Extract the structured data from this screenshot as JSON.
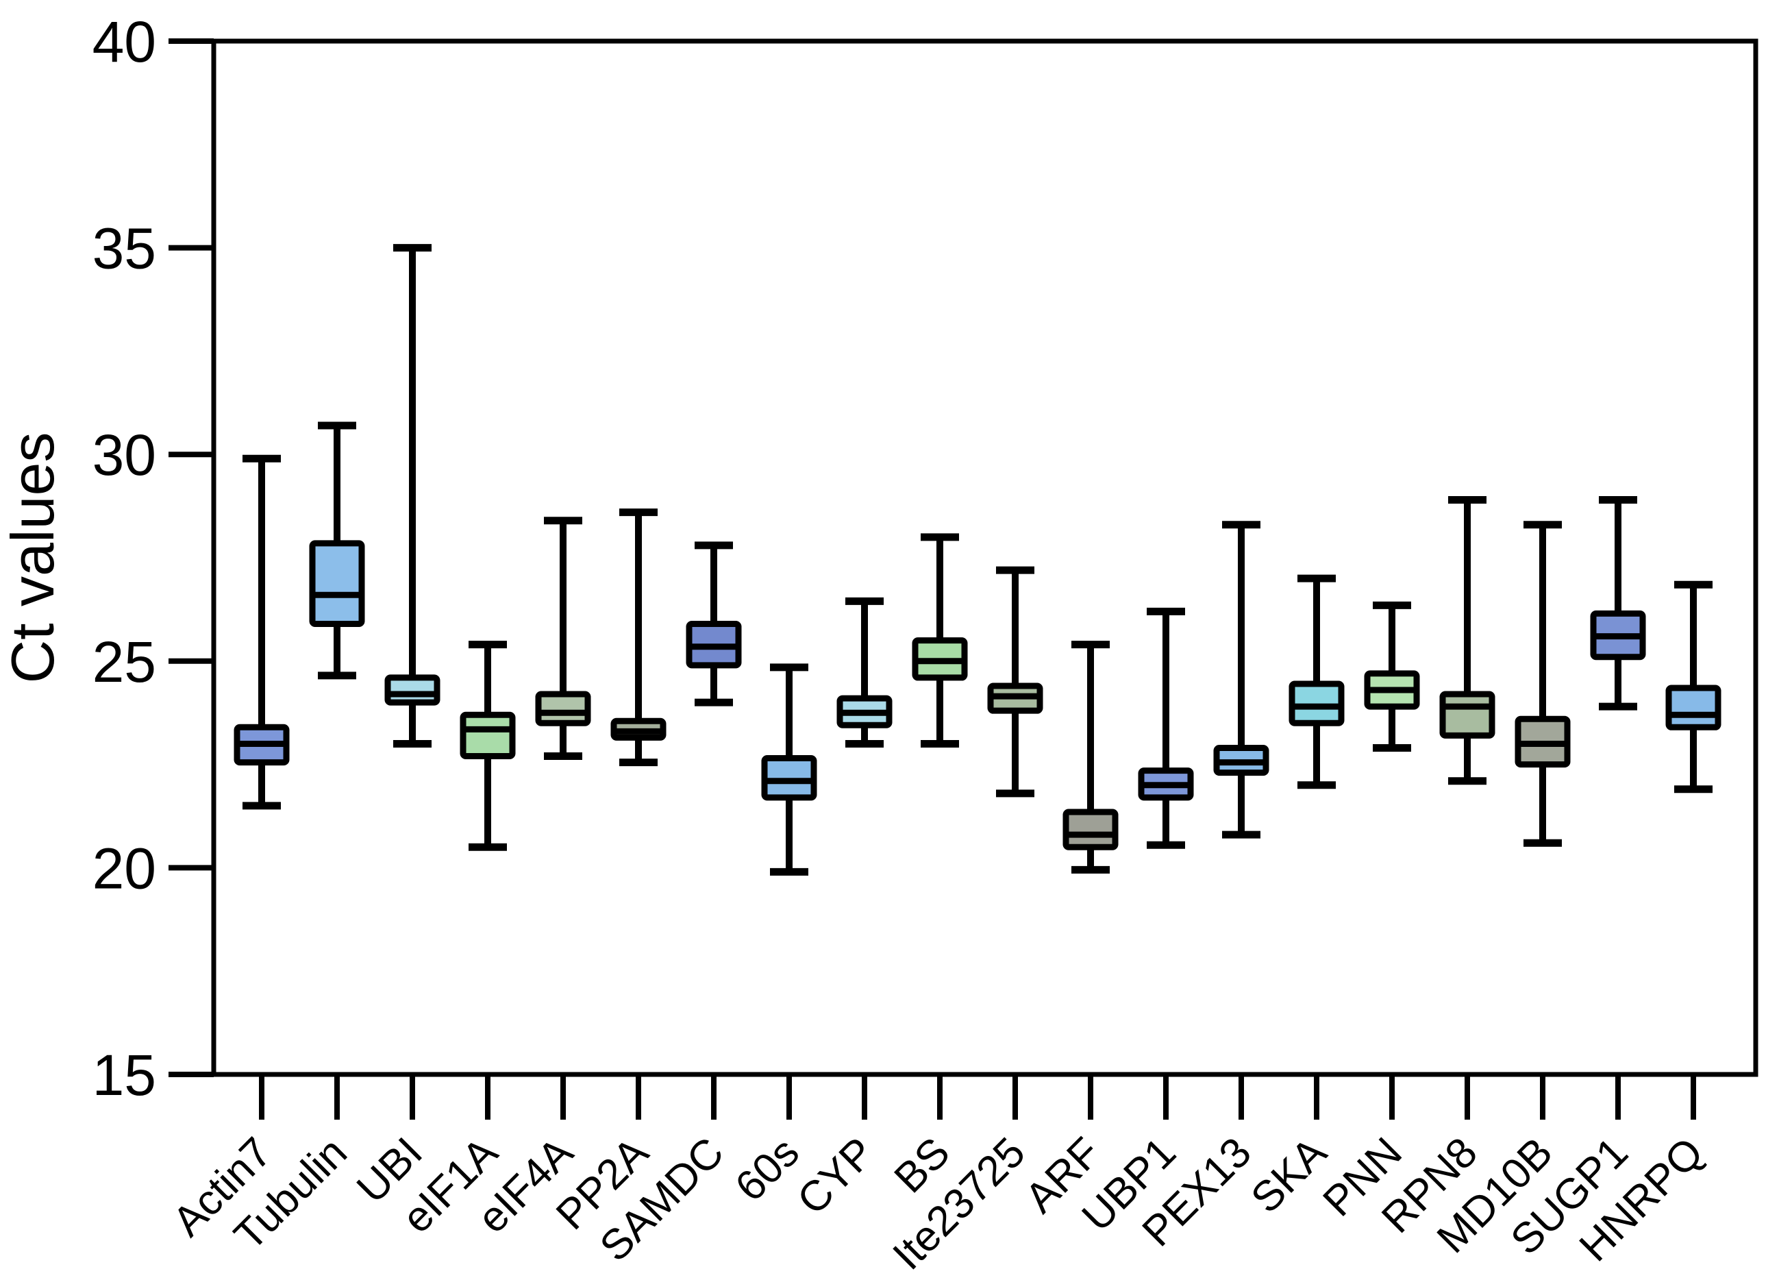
{
  "chart_data": {
    "type": "boxplot",
    "title": "",
    "xlabel": "",
    "ylabel": "Ct values",
    "ylim": [
      15,
      40
    ],
    "yticks": [
      15,
      20,
      25,
      30,
      35,
      40
    ],
    "grid": false,
    "legend": "none",
    "categories": [
      "Actin7",
      "Tubulin",
      "UBI",
      "eIF1A",
      "eIF4A",
      "PP2A",
      "SAMDC",
      "60s",
      "CYP",
      "BS",
      "Ite23725",
      "ARF",
      "UBP1",
      "PEX13",
      "SKA",
      "PNN",
      "RPN8",
      "MD10B",
      "SUGP1",
      "HNRPQ"
    ],
    "boxes": [
      {
        "name": "Actin7",
        "min": 21.5,
        "q1": 22.55,
        "median": 23.0,
        "q3": 23.4,
        "max": 29.9,
        "color": "#7d97d9"
      },
      {
        "name": "Tubulin",
        "min": 24.65,
        "q1": 25.9,
        "median": 26.6,
        "q3": 27.85,
        "max": 30.7,
        "color": "#8cbeea"
      },
      {
        "name": "UBI",
        "min": 23.0,
        "q1": 24.0,
        "median": 24.2,
        "q3": 24.6,
        "max": 35.0,
        "color": "#aadae8"
      },
      {
        "name": "eIF1A",
        "min": 20.5,
        "q1": 22.7,
        "median": 23.35,
        "q3": 23.7,
        "max": 25.4,
        "color": "#a9dca9"
      },
      {
        "name": "eIF4A",
        "min": 22.7,
        "q1": 23.5,
        "median": 23.75,
        "q3": 24.2,
        "max": 28.4,
        "color": "#b0c4aa"
      },
      {
        "name": "PP2A",
        "min": 22.55,
        "q1": 23.15,
        "median": 23.3,
        "q3": 23.55,
        "max": 28.6,
        "color": "#a3ae9b"
      },
      {
        "name": "SAMDC",
        "min": 24.0,
        "q1": 24.9,
        "median": 25.35,
        "q3": 25.9,
        "max": 27.8,
        "color": "#7389ce"
      },
      {
        "name": "60s",
        "min": 19.9,
        "q1": 21.7,
        "median": 22.1,
        "q3": 22.65,
        "max": 24.85,
        "color": "#87bae8"
      },
      {
        "name": "CYP",
        "min": 23.0,
        "q1": 23.45,
        "median": 23.75,
        "q3": 24.1,
        "max": 26.45,
        "color": "#aadae8"
      },
      {
        "name": "BS",
        "min": 23.0,
        "q1": 24.6,
        "median": 25.0,
        "q3": 25.5,
        "max": 28.0,
        "color": "#a8dca6"
      },
      {
        "name": "Ite23725",
        "min": 21.8,
        "q1": 23.8,
        "median": 24.15,
        "q3": 24.4,
        "max": 27.2,
        "color": "#a8bca0"
      },
      {
        "name": "ARF",
        "min": 19.95,
        "q1": 20.5,
        "median": 20.8,
        "q3": 21.35,
        "max": 25.4,
        "color": "#9ea096"
      },
      {
        "name": "UBP1",
        "min": 20.55,
        "q1": 21.7,
        "median": 22.0,
        "q3": 22.35,
        "max": 26.2,
        "color": "#7d97d9"
      },
      {
        "name": "PEX13",
        "min": 20.8,
        "q1": 22.3,
        "median": 22.55,
        "q3": 22.9,
        "max": 28.3,
        "color": "#87bae8"
      },
      {
        "name": "SKA",
        "min": 22.0,
        "q1": 23.5,
        "median": 23.9,
        "q3": 24.45,
        "max": 27.0,
        "color": "#8bd6e2"
      },
      {
        "name": "PNN",
        "min": 22.9,
        "q1": 23.9,
        "median": 24.3,
        "q3": 24.7,
        "max": 26.35,
        "color": "#b5e3b0"
      },
      {
        "name": "RPN8",
        "min": 22.1,
        "q1": 23.2,
        "median": 23.9,
        "q3": 24.2,
        "max": 28.9,
        "color": "#a8bca0"
      },
      {
        "name": "MD10B",
        "min": 20.6,
        "q1": 22.5,
        "median": 23.0,
        "q3": 23.6,
        "max": 28.3,
        "color": "#a2a79a"
      },
      {
        "name": "SUGP1",
        "min": 23.9,
        "q1": 25.1,
        "median": 25.6,
        "q3": 26.15,
        "max": 28.9,
        "color": "#7a92d4"
      },
      {
        "name": "HNRPQ",
        "min": 21.9,
        "q1": 23.4,
        "median": 23.7,
        "q3": 24.35,
        "max": 26.85,
        "color": "#87bae8"
      }
    ],
    "line_color": "#000000",
    "background_color": "#ffffff"
  }
}
